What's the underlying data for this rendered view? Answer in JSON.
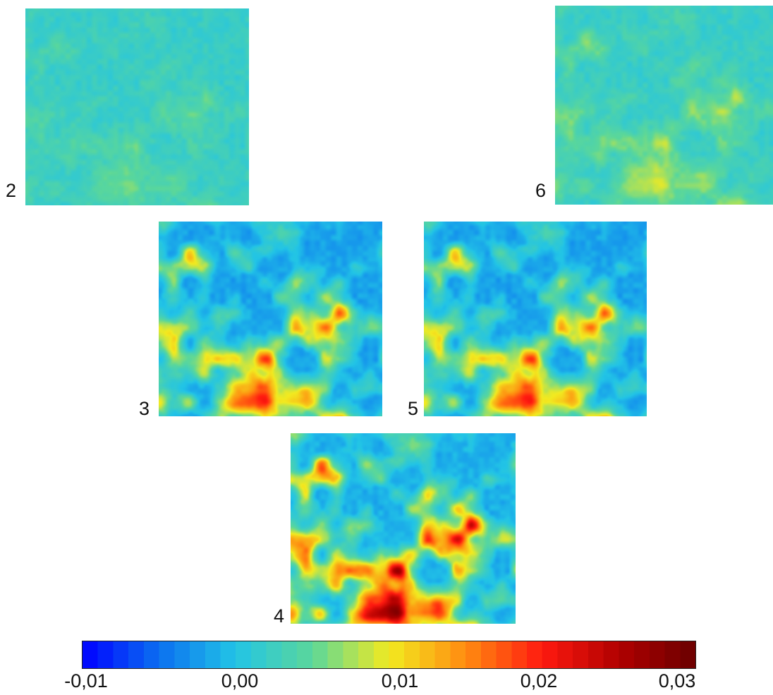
{
  "panels": [
    {
      "id": "panel-2",
      "label": "2",
      "palette": "low"
    },
    {
      "id": "panel-6",
      "label": "6",
      "palette": "lowmid"
    },
    {
      "id": "panel-3",
      "label": "3",
      "palette": "mid"
    },
    {
      "id": "panel-5",
      "label": "5",
      "palette": "mid"
    },
    {
      "id": "panel-4",
      "label": "4",
      "palette": "high"
    }
  ],
  "colorbar": {
    "tick_labels": [
      "-0,01",
      "0,00",
      "0,01",
      "0,02",
      "0,03"
    ],
    "colormap": "jet",
    "colors": [
      "#0000ff",
      "#0b6ff0",
      "#22c4e6",
      "#5bd79a",
      "#f2ea20",
      "#ff8b10",
      "#ff1a10",
      "#b00000",
      "#6a0000"
    ]
  }
}
